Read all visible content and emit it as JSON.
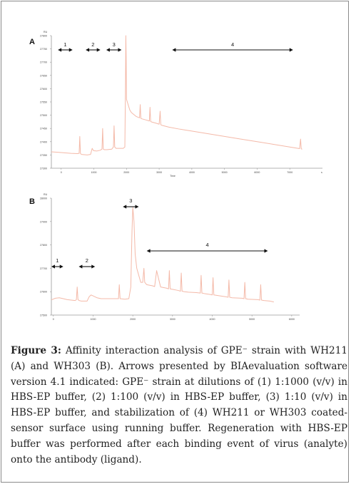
{
  "panels": [
    {
      "letter": "A",
      "y_unit": "RU",
      "x_unit": "Time",
      "x_suffix": "s",
      "y_ticks": [
        "27800",
        "27750",
        "27700",
        "27650",
        "27600",
        "27550",
        "27500",
        "27450",
        "27400",
        "27350",
        "27300"
      ],
      "x_ticks": [
        "0",
        "1000",
        "2000",
        "3000",
        "4000",
        "5000",
        "6000",
        "7000"
      ],
      "arrows": [
        {
          "label": "1",
          "x_start": -100,
          "x_end": 350
        },
        {
          "label": "2",
          "x_start": 750,
          "x_end": 1200
        },
        {
          "label": "3",
          "x_start": 1380,
          "x_end": 1850
        },
        {
          "label": "4",
          "x_start": 3400,
          "x_end": 7100
        }
      ],
      "chart_data": {
        "type": "line",
        "x_range": [
          -300,
          8000
        ],
        "y_range": [
          27300,
          27800
        ],
        "series": [
          {
            "color": "#f4b9a8",
            "x": [
              -300,
              -100,
              100,
              300,
              500,
              550,
              570,
              590,
              620,
              800,
              900,
              950,
              980,
              1000,
              1100,
              1200,
              1250,
              1270,
              1290,
              1320,
              1400,
              1550,
              1600,
              1620,
              1640,
              1680,
              1900,
              1950,
              1970,
              1980,
              1990,
              2000,
              2050,
              2100,
              2150,
              2300,
              2400,
              2420,
              2440,
              2480,
              2600,
              2700,
              2720,
              2740,
              2780,
              2900,
              3000,
              3030,
              3050,
              3080,
              3300,
              3600,
              4000,
              4500,
              5000,
              5500,
              6000,
              6500,
              7000,
              7200,
              7300,
              7330,
              7350,
              7380
            ],
            "y": [
              27362,
              27360,
              27358,
              27356,
              27355,
              27356,
              27420,
              27356,
              27352,
              27350,
              27352,
              27375,
              27368,
              27366,
              27365,
              27368,
              27372,
              27450,
              27372,
              27370,
              27370,
              27372,
              27380,
              27460,
              27380,
              27375,
              27375,
              27380,
              27620,
              27800,
              27720,
              27560,
              27540,
              27520,
              27510,
              27495,
              27490,
              27540,
              27488,
              27486,
              27482,
              27478,
              27530,
              27476,
              27474,
              27470,
              27466,
              27515,
              27464,
              27462,
              27455,
              27448,
              27440,
              27430,
              27420,
              27410,
              27400,
              27390,
              27380,
              27376,
              27374,
              27410,
              27373,
              27372
            ]
          }
        ]
      }
    },
    {
      "letter": "B",
      "y_unit": "RU",
      "x_unit": "",
      "x_suffix": "",
      "y_ticks": [
        "28000",
        "27900",
        "27800",
        "27700",
        "27600",
        "27500"
      ],
      "x_ticks": [
        "0",
        "1000",
        "2000",
        "3000",
        "4000",
        "5000",
        "6000"
      ],
      "arrows": [
        {
          "label": "1",
          "x_start": -50,
          "x_end": 250
        },
        {
          "label": "2",
          "x_start": 640,
          "x_end": 1050
        },
        {
          "label": "3",
          "x_start": 1750,
          "x_end": 2150
        },
        {
          "label": "4",
          "x_start": 2350,
          "x_end": 5400
        }
      ],
      "chart_data": {
        "type": "line",
        "x_range": [
          -50,
          6200
        ],
        "y_range": [
          27500,
          28000
        ],
        "series": [
          {
            "color": "#f4b9a8",
            "x": [
              -50,
              50,
              150,
              250,
              350,
              450,
              550,
              580,
              600,
              620,
              650,
              700,
              850,
              900,
              950,
              1000,
              1050,
              1100,
              1200,
              1400,
              1600,
              1640,
              1660,
              1680,
              1800,
              1900,
              1950,
              1980,
              2000,
              2030,
              2060,
              2100,
              2200,
              2250,
              2280,
              2300,
              2350,
              2500,
              2550,
              2600,
              2700,
              2850,
              2900,
              2920,
              2940,
              3000,
              3150,
              3200,
              3220,
              3240,
              3300,
              3400,
              3600,
              3700,
              3720,
              3740,
              3800,
              3950,
              4000,
              4020,
              4040,
              4200,
              4350,
              4400,
              4420,
              4440,
              4500,
              4750,
              4800,
              4820,
              4840,
              4900,
              5150,
              5200,
              5220,
              5240,
              5300,
              5450,
              5500,
              5550
            ],
            "y": [
              27565,
              27572,
              27574,
              27570,
              27566,
              27564,
              27562,
              27566,
              27620,
              27566,
              27562,
              27560,
              27560,
              27578,
              27586,
              27582,
              27578,
              27574,
              27570,
              27570,
              27570,
              27570,
              27630,
              27570,
              27568,
              27570,
              27620,
              27860,
              27960,
              27900,
              27760,
              27700,
              27640,
              27640,
              27700,
              27640,
              27630,
              27625,
              27622,
              27690,
              27620,
              27615,
              27612,
              27690,
              27612,
              27610,
              27605,
              27602,
              27680,
              27602,
              27600,
              27598,
              27596,
              27594,
              27670,
              27594,
              27592,
              27588,
              27586,
              27660,
              27586,
              27582,
              27578,
              27576,
              27650,
              27576,
              27574,
              27572,
              27570,
              27640,
              27570,
              27568,
              27566,
              27564,
              27630,
              27564,
              27562,
              27560,
              27558,
              27556
            ]
          }
        ]
      }
    }
  ],
  "caption": {
    "label": "Figure 3:",
    "text": "Affinity interaction analysis of GPE⁻ strain with WH211 (A) and WH303 (B). Arrows presented by BIAevaluation software version 4.1 indicated: GPE⁻ strain at dilutions of (1) 1:1000 (v/v) in HBS-EP buffer, (2) 1:100 (v/v) in HBS-EP buffer, (3) 1:10 (v/v) in HBS-EP buffer, and stabilization of (4) WH211 or WH303 coated-sensor surface using running buffer. Regeneration with HBS-EP buffer was performed after each binding event of virus (analyte) onto the antibody (ligand)."
  }
}
